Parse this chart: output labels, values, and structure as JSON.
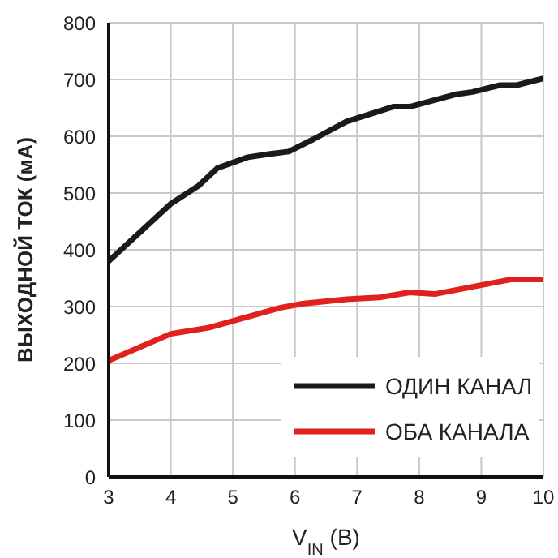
{
  "chart_data": {
    "type": "line",
    "xlabel": "V$_{IN}$ (В)",
    "ylabel": "ВЫХОДНОЙ ТОК (мА)",
    "xlim": [
      3,
      10
    ],
    "xticks": [
      3,
      4,
      5,
      6,
      7,
      8,
      9,
      10
    ],
    "ylim": [
      0,
      800
    ],
    "yticks": [
      0,
      100,
      200,
      300,
      400,
      500,
      600,
      700,
      800
    ],
    "grid": true,
    "legend": "bottom right",
    "line_style": "solid",
    "marker": "none",
    "series": [
      {
        "name": "ОДИН КАНАЛ",
        "color": "#1a1a1a",
        "x": [
          3,
          4,
          4.45,
          4.75,
          5.24,
          5.6,
          5.9,
          6.3,
          6.83,
          7.58,
          7.85,
          8.6,
          8.86,
          9.3,
          9.57,
          10
        ],
        "values": [
          380,
          481,
          513,
          544,
          563,
          569,
          573,
          595,
          626,
          652,
          652,
          674,
          678,
          690,
          690,
          702
        ]
      },
      {
        "name": "ОБА КАНАЛА",
        "color": "#e0211d",
        "x": [
          3,
          4,
          4.62,
          5.24,
          5.77,
          6.12,
          6.83,
          7.36,
          7.85,
          8.25,
          8.96,
          9.49,
          10
        ],
        "values": [
          205,
          252,
          263,
          282,
          298,
          305,
          313,
          316,
          325,
          322,
          337,
          348,
          348
        ]
      }
    ]
  }
}
